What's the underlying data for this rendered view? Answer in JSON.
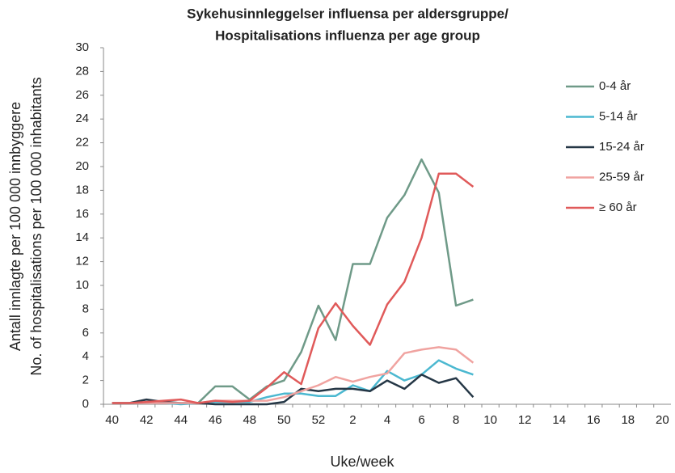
{
  "chart_data": {
    "type": "line",
    "title": [
      "Sykehusinnleggelser influensa per aldersgruppe/",
      "Hospitalisations influenza per age group"
    ],
    "y_label": [
      "Antall innlagte per 100 000 innbyggere",
      "No. of hospitalisations per 100 000 inhabitants"
    ],
    "x_label": "Uke/week",
    "categories": [
      40,
      null,
      42,
      null,
      44,
      null,
      46,
      null,
      48,
      null,
      50,
      null,
      52,
      null,
      2,
      null,
      4,
      null,
      6,
      null,
      8,
      null,
      10,
      null,
      12,
      null,
      14,
      null,
      16,
      null,
      18,
      null,
      20
    ],
    "ylim": [
      0,
      30
    ],
    "yticks": [
      0,
      2,
      4,
      6,
      8,
      10,
      12,
      14,
      16,
      18,
      20,
      22,
      24,
      26,
      28,
      30
    ],
    "legend": "right",
    "series": [
      {
        "name": "0-4 år",
        "color": "#6f9a88",
        "values": [
          0.1,
          0.1,
          0.1,
          0.2,
          0.1,
          0.1,
          1.5,
          1.5,
          0.4,
          1.5,
          2.0,
          4.4,
          8.3,
          5.4,
          11.8,
          11.8,
          15.7,
          17.6,
          20.6,
          17.8,
          8.3,
          8.8,
          null,
          null,
          null,
          null,
          null,
          null,
          null,
          null,
          null,
          null,
          null
        ]
      },
      {
        "name": "5-14 år",
        "color": "#4bb8d0",
        "values": [
          0.1,
          0.1,
          0.1,
          0.1,
          0,
          0.1,
          0.2,
          0.2,
          0.2,
          0.6,
          0.9,
          0.9,
          0.7,
          0.7,
          1.6,
          1.1,
          2.8,
          2.0,
          2.5,
          3.7,
          3.0,
          2.5,
          null,
          null,
          null,
          null,
          null,
          null,
          null,
          null,
          null,
          null,
          null
        ]
      },
      {
        "name": "15-24 år",
        "color": "#253746",
        "values": [
          0.1,
          0.1,
          0.4,
          0.2,
          0.1,
          0.1,
          0,
          0,
          0,
          0,
          0.2,
          1.3,
          1.1,
          1.3,
          1.3,
          1.1,
          2.0,
          1.3,
          2.5,
          1.8,
          2.2,
          0.6,
          null,
          null,
          null,
          null,
          null,
          null,
          null,
          null,
          null,
          null,
          null
        ]
      },
      {
        "name": "25-59 år",
        "color": "#f0a3a0",
        "values": [
          0.1,
          0.1,
          0.1,
          0.1,
          0.1,
          0.1,
          0.3,
          0.3,
          0.3,
          0.3,
          0.6,
          1.1,
          1.6,
          2.3,
          1.9,
          2.3,
          2.6,
          4.3,
          4.6,
          4.8,
          4.6,
          3.5,
          null,
          null,
          null,
          null,
          null,
          null,
          null,
          null,
          null,
          null,
          null
        ]
      },
      {
        "name": "≥ 60 år",
        "color": "#e05a5a",
        "values": [
          0.1,
          0.1,
          0.2,
          0.3,
          0.4,
          0.1,
          0.3,
          0.2,
          0.3,
          1.4,
          2.7,
          1.7,
          6.4,
          8.5,
          6.6,
          5.0,
          8.4,
          10.3,
          14.0,
          19.4,
          19.4,
          18.3,
          null,
          null,
          null,
          null,
          null,
          null,
          null,
          null,
          null,
          null,
          null
        ]
      }
    ]
  }
}
